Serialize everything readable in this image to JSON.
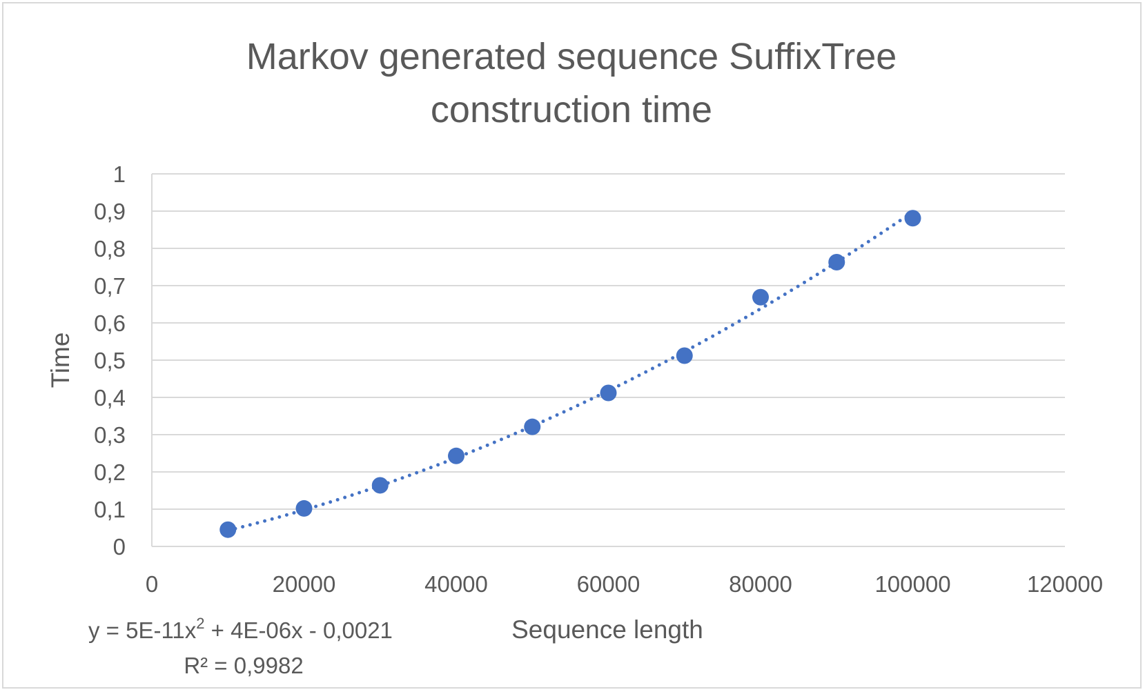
{
  "chart_data": {
    "type": "scatter",
    "title_lines": [
      "Markov generated sequence SuffixTree",
      "construction time"
    ],
    "xlabel": "Sequence length",
    "ylabel": "Time",
    "xlim": [
      0,
      120000
    ],
    "ylim": [
      0,
      1
    ],
    "x_ticks": [
      0,
      20000,
      40000,
      60000,
      80000,
      100000,
      120000
    ],
    "x_tick_labels": [
      "0",
      "20000",
      "40000",
      "60000",
      "80000",
      "100000",
      "120000"
    ],
    "y_ticks": [
      0,
      0.1,
      0.2,
      0.3,
      0.4,
      0.5,
      0.6,
      0.7,
      0.8,
      0.9,
      1
    ],
    "y_tick_labels": [
      "0",
      "0,1",
      "0,2",
      "0,3",
      "0,4",
      "0,5",
      "0,6",
      "0,7",
      "0,8",
      "0,9",
      "1"
    ],
    "grid": "horizontal",
    "x": [
      10000,
      20000,
      30000,
      40000,
      50000,
      60000,
      70000,
      80000,
      90000,
      100000
    ],
    "y": [
      0.045,
      0.102,
      0.164,
      0.243,
      0.321,
      0.412,
      0.512,
      0.669,
      0.763,
      0.881
    ],
    "trendline": {
      "type": "polynomial",
      "degree": 2,
      "coefficients": {
        "a": 5e-11,
        "b": 4e-06,
        "c": -0.0021
      },
      "x_range": [
        10000,
        100000
      ],
      "equation_prefix": "y = 5E-11x",
      "equation_suffix": " + 4E-06x - 0,0021",
      "exponent": "2",
      "r_squared_label": "R² = 0,9982"
    },
    "colors": {
      "marker": "#4472c4",
      "trendline": "#4472c4",
      "grid": "#d9d9d9",
      "text": "#595959"
    }
  }
}
